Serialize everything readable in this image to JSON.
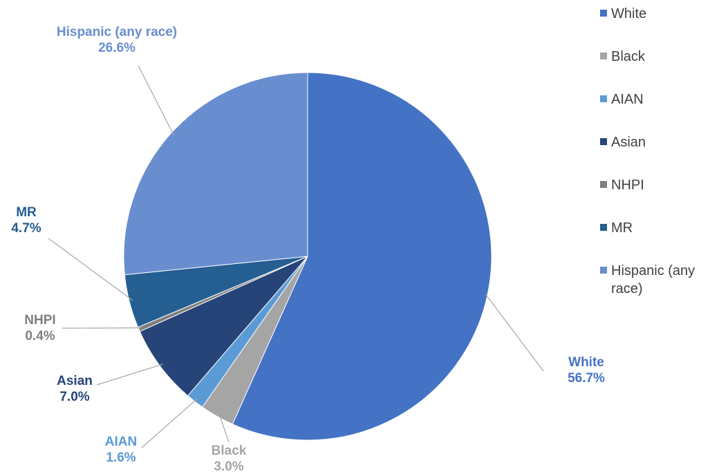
{
  "chart_data": {
    "type": "pie",
    "title": "",
    "categories": [
      "White",
      "Black",
      "AIAN",
      "Asian",
      "NHPI",
      "MR",
      "Hispanic (any race)"
    ],
    "values": [
      56.7,
      3.0,
      1.6,
      7.0,
      0.4,
      4.7,
      26.6
    ],
    "value_labels": [
      "56.7%",
      "3.0%",
      "1.6%",
      "7.0%",
      "0.4%",
      "4.7%",
      "26.6%"
    ],
    "label_names": [
      "White",
      "Black",
      "AIAN",
      "Asian",
      "NHPI",
      "MR",
      "Hispanic (any race)"
    ],
    "legend_lines": [
      [
        "White"
      ],
      [
        "Black"
      ],
      [
        "AIAN"
      ],
      [
        "Asian"
      ],
      [
        "NHPI"
      ],
      [
        "MR"
      ],
      [
        "Hispanic (any",
        "race)"
      ]
    ],
    "colors": [
      "#4472C4",
      "#A5A5A5",
      "#5B9BD5",
      "#264478",
      "#7F7F7F",
      "#255E91",
      "#698ED0"
    ],
    "label_colors": [
      "#4472C4",
      "#A5A5A5",
      "#5B9BD5",
      "#264478",
      "#7F7F7F",
      "#255E91",
      "#698ED0"
    ],
    "start_angle": "12 o'clock",
    "direction": "clockwise",
    "legend_position": "right",
    "leader_line_color": "#A6A6A6"
  }
}
